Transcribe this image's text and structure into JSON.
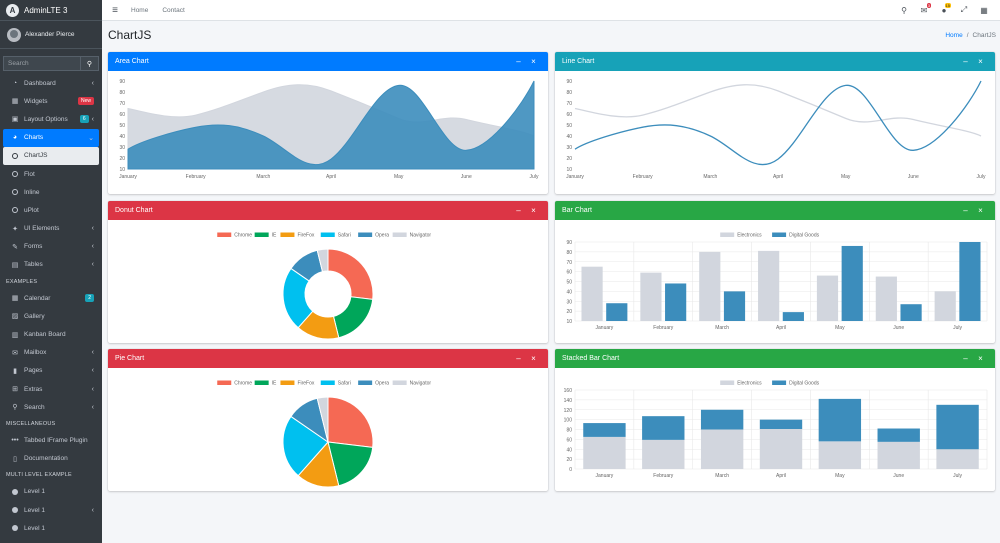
{
  "brand": {
    "name": "AdminLTE 3",
    "logo_letter": "A"
  },
  "user": {
    "name": "Alexander Pierce"
  },
  "sidebar_search": {
    "placeholder": "Search"
  },
  "nav_items_1": [
    {
      "label": "Dashboard",
      "icon": "gauge-icon",
      "glyph": "◔",
      "chev": "‹"
    },
    {
      "label": "Widgets",
      "icon": "widgets-icon",
      "glyph": "▦",
      "badge": "New"
    },
    {
      "label": "Layout Options",
      "icon": "copy-icon",
      "glyph": "▣",
      "badge": "6",
      "chev": "‹"
    },
    {
      "label": "Charts",
      "icon": "pie-chart-icon",
      "glyph": "◕",
      "chev": "⌄"
    },
    {
      "label": "ChartJS",
      "icon": "circle-icon"
    },
    {
      "label": "Flot",
      "icon": "circle-icon"
    },
    {
      "label": "Inline",
      "icon": "circle-icon"
    },
    {
      "label": "uPlot",
      "icon": "circle-icon"
    },
    {
      "label": "UI Elements",
      "icon": "tree-icon",
      "glyph": "✦",
      "chev": "‹"
    },
    {
      "label": "Forms",
      "icon": "edit-icon",
      "glyph": "✎",
      "chev": "‹"
    },
    {
      "label": "Tables",
      "icon": "table-icon",
      "glyph": "▤",
      "chev": "‹"
    }
  ],
  "header_examples": "EXAMPLES",
  "nav_items_2": [
    {
      "label": "Calendar",
      "icon": "calendar-icon",
      "glyph": "▦",
      "badge": "2"
    },
    {
      "label": "Gallery",
      "icon": "image-icon",
      "glyph": "▨"
    },
    {
      "label": "Kanban Board",
      "icon": "columns-icon",
      "glyph": "▥"
    },
    {
      "label": "Mailbox",
      "icon": "envelope-icon",
      "glyph": "✉",
      "chev": "‹"
    },
    {
      "label": "Pages",
      "icon": "book-icon",
      "glyph": "▮",
      "chev": "‹"
    },
    {
      "label": "Extras",
      "icon": "plus-square-icon",
      "glyph": "⊞",
      "chev": "‹"
    },
    {
      "label": "Search",
      "icon": "search-icon",
      "glyph": "⚲",
      "chev": "‹"
    }
  ],
  "header_misc": "MISCELLANEOUS",
  "nav_items_3": [
    {
      "label": "Tabbed IFrame Plugin",
      "icon": "ellipsis-icon",
      "glyph": "•••"
    },
    {
      "label": "Documentation",
      "icon": "file-icon",
      "glyph": "▯"
    }
  ],
  "header_multi": "MULTI LEVEL EXAMPLE",
  "nav_items_4": [
    {
      "label": "Level 1",
      "icon": "circle-solid-icon"
    },
    {
      "label": "Level 1",
      "icon": "circle-solid-icon",
      "chev": "‹"
    },
    {
      "label": "Level 1",
      "icon": "circle-solid-icon"
    }
  ],
  "topnav": {
    "menu_glyph": "≡",
    "home": "Home",
    "contact": "Contact",
    "messages_count": "3",
    "notifications_count": "15"
  },
  "page": {
    "title": "ChartJS",
    "breadcrumb_home": "Home",
    "breadcrumb_sep": "/",
    "breadcrumb_current": "ChartJS"
  },
  "cards": {
    "area": {
      "title": "Area Chart",
      "minimize": "–",
      "close": "×"
    },
    "line": {
      "title": "Line Chart",
      "minimize": "–",
      "close": "×"
    },
    "donut": {
      "title": "Donut Chart",
      "minimize": "–",
      "close": "×"
    },
    "bar": {
      "title": "Bar Chart",
      "minimize": "–",
      "close": "×"
    },
    "pie": {
      "title": "Pie Chart",
      "minimize": "–",
      "close": "×"
    },
    "stacked": {
      "title": "Stacked Bar Chart",
      "minimize": "–",
      "close": "×"
    }
  },
  "colors": {
    "primary": "#007bff",
    "info": "#17a2b8",
    "danger": "#dc3545",
    "success": "#28a745",
    "series_gray": "#d2d6de",
    "series_blue": "#3c8dbc"
  },
  "chart_data": [
    {
      "id": "area",
      "type": "area",
      "categories": [
        "January",
        "February",
        "March",
        "April",
        "May",
        "June",
        "July"
      ],
      "ylim": [
        10,
        90
      ],
      "yticks": [
        10,
        20,
        30,
        40,
        50,
        60,
        70,
        80,
        90
      ],
      "series": [
        {
          "name": "Electronics",
          "color": "#d2d6de",
          "values": [
            65,
            59,
            80,
            81,
            56,
            55,
            40
          ]
        },
        {
          "name": "Digital Goods",
          "color": "#3c8dbc",
          "values": [
            28,
            48,
            40,
            19,
            86,
            27,
            90
          ]
        }
      ]
    },
    {
      "id": "line",
      "type": "line",
      "categories": [
        "January",
        "February",
        "March",
        "April",
        "May",
        "June",
        "July"
      ],
      "ylim": [
        10,
        90
      ],
      "yticks": [
        10,
        20,
        30,
        40,
        50,
        60,
        70,
        80,
        90
      ],
      "series": [
        {
          "name": "Electronics",
          "color": "#d2d6de",
          "values": [
            65,
            59,
            80,
            81,
            56,
            55,
            40
          ]
        },
        {
          "name": "Digital Goods",
          "color": "#3c8dbc",
          "values": [
            28,
            48,
            40,
            19,
            86,
            27,
            90
          ]
        }
      ]
    },
    {
      "id": "donut",
      "type": "pie",
      "donut": true,
      "legend": [
        "Chrome",
        "IE",
        "FireFox",
        "Safari",
        "Opera",
        "Navigator"
      ],
      "values": [
        700,
        500,
        400,
        600,
        300,
        100
      ],
      "colors": [
        "#f56954",
        "#00a65a",
        "#f39c12",
        "#00c0ef",
        "#3c8dbc",
        "#d2d6de"
      ]
    },
    {
      "id": "bar",
      "type": "bar",
      "legend": [
        "Electronics",
        "Digital Goods"
      ],
      "categories": [
        "January",
        "February",
        "March",
        "April",
        "May",
        "June",
        "July"
      ],
      "ylim": [
        10,
        90
      ],
      "yticks": [
        10,
        20,
        30,
        40,
        50,
        60,
        70,
        80,
        90
      ],
      "series": [
        {
          "name": "Electronics",
          "color": "#d2d6de",
          "values": [
            65,
            59,
            80,
            81,
            56,
            55,
            40
          ]
        },
        {
          "name": "Digital Goods",
          "color": "#3c8dbc",
          "values": [
            28,
            48,
            40,
            19,
            86,
            27,
            90
          ]
        }
      ]
    },
    {
      "id": "pie",
      "type": "pie",
      "donut": false,
      "legend": [
        "Chrome",
        "IE",
        "FireFox",
        "Safari",
        "Opera",
        "Navigator"
      ],
      "values": [
        700,
        500,
        400,
        600,
        300,
        100
      ],
      "colors": [
        "#f56954",
        "#00a65a",
        "#f39c12",
        "#00c0ef",
        "#3c8dbc",
        "#d2d6de"
      ]
    },
    {
      "id": "stacked",
      "type": "bar",
      "stacked": true,
      "legend": [
        "Electronics",
        "Digital Goods"
      ],
      "categories": [
        "January",
        "February",
        "March",
        "April",
        "May",
        "June",
        "July"
      ],
      "ylim": [
        0,
        160
      ],
      "yticks": [
        0,
        20,
        40,
        60,
        80,
        100,
        120,
        140,
        160
      ],
      "series": [
        {
          "name": "Electronics",
          "color": "#d2d6de",
          "values": [
            65,
            59,
            80,
            81,
            56,
            55,
            40
          ]
        },
        {
          "name": "Digital Goods",
          "color": "#3c8dbc",
          "values": [
            28,
            48,
            40,
            19,
            86,
            27,
            90
          ]
        }
      ]
    }
  ]
}
